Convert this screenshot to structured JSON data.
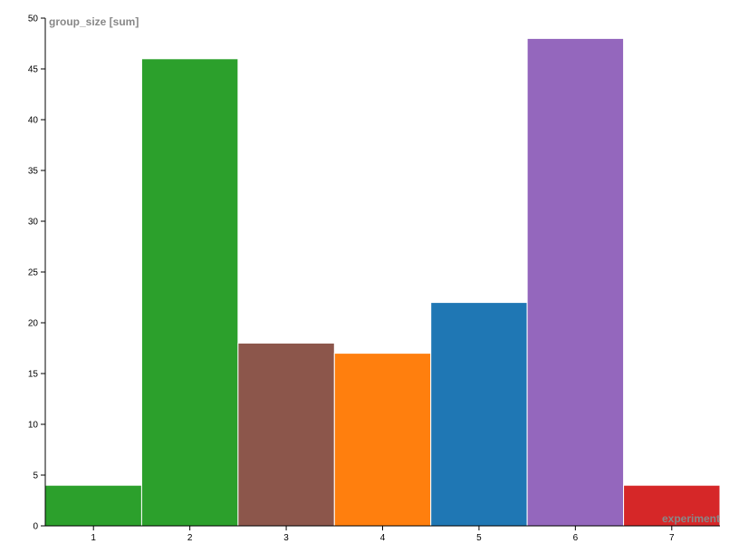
{
  "chart_data": {
    "type": "bar",
    "y_label": "group_size [sum]",
    "x_label": "experiment",
    "categories": [
      "1",
      "2",
      "3",
      "4",
      "5",
      "6",
      "7"
    ],
    "values": [
      4,
      46,
      18,
      17,
      22,
      48,
      4
    ],
    "colors": [
      "#2ca02c",
      "#2ca02c",
      "#8c564b",
      "#ff7f0e",
      "#1f77b4",
      "#9467bd",
      "#d62728"
    ],
    "ylim": [
      0,
      50
    ],
    "yticks": [
      0,
      5,
      10,
      15,
      20,
      25,
      30,
      35,
      40,
      45,
      50
    ]
  }
}
